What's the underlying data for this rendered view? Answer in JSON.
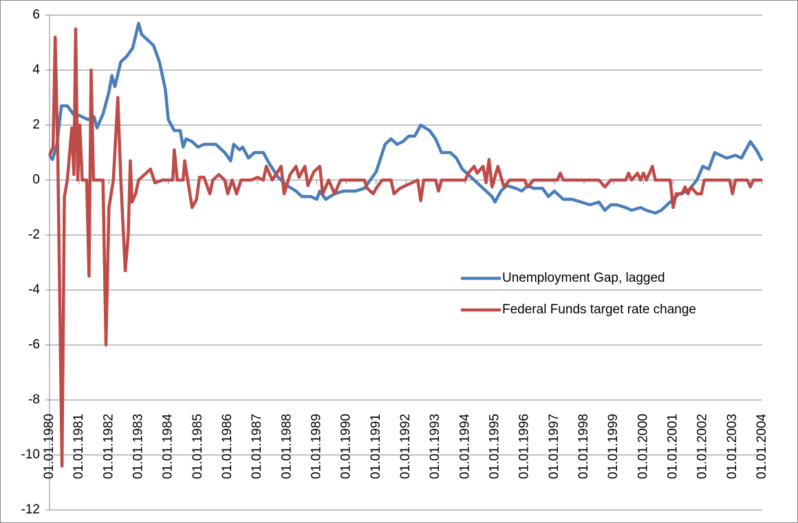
{
  "chart_data": {
    "type": "line",
    "xlim": [
      1980,
      2004
    ],
    "xticks": [
      {
        "value": 1980,
        "label": "01.01.1980"
      },
      {
        "value": 1981,
        "label": "01.01.1981"
      },
      {
        "value": 1982,
        "label": "01.01.1982"
      },
      {
        "value": 1983,
        "label": "01.01.1983"
      },
      {
        "value": 1984,
        "label": "01.01.1984"
      },
      {
        "value": 1985,
        "label": "01.01.1985"
      },
      {
        "value": 1986,
        "label": "01.01.1986"
      },
      {
        "value": 1987,
        "label": "01.01.1987"
      },
      {
        "value": 1988,
        "label": "01.01.1988"
      },
      {
        "value": 1989,
        "label": "01.01.1989"
      },
      {
        "value": 1990,
        "label": "01.01.1990"
      },
      {
        "value": 1991,
        "label": "01.01.1991"
      },
      {
        "value": 1992,
        "label": "01.01.1992"
      },
      {
        "value": 1993,
        "label": "01.01.1993"
      },
      {
        "value": 1994,
        "label": "01.01.1994"
      },
      {
        "value": 1995,
        "label": "01.01.1995"
      },
      {
        "value": 1996,
        "label": "01.01.1996"
      },
      {
        "value": 1997,
        "label": "01.01.1997"
      },
      {
        "value": 1998,
        "label": "01.01.1998"
      },
      {
        "value": 1999,
        "label": "01.01.1999"
      },
      {
        "value": 2000,
        "label": "01.01.2000"
      },
      {
        "value": 2001,
        "label": "01.01.2001"
      },
      {
        "value": 2002,
        "label": "01.01.2002"
      },
      {
        "value": 2003,
        "label": "01.01.2003"
      },
      {
        "value": 2004,
        "label": "01.01.2004"
      }
    ],
    "ylim": [
      -12,
      6
    ],
    "yticks": [
      -12,
      -10,
      -8,
      -6,
      -4,
      -2,
      0,
      2,
      4,
      6
    ],
    "grid": true,
    "legend": "right",
    "series": [
      {
        "name": "Unemployment Gap, lagged",
        "color": "#4a7ebb",
        "x": [
          1980.0,
          1980.1,
          1980.25,
          1980.4,
          1980.6,
          1980.8,
          1981.0,
          1981.3,
          1981.5,
          1981.6,
          1981.8,
          1982.0,
          1982.1,
          1982.2,
          1982.4,
          1982.6,
          1982.8,
          1983.0,
          1983.1,
          1983.5,
          1983.7,
          1983.9,
          1984.0,
          1984.2,
          1984.4,
          1984.5,
          1984.6,
          1984.8,
          1985.0,
          1985.2,
          1985.6,
          1985.9,
          1986.1,
          1986.2,
          1986.4,
          1986.5,
          1986.7,
          1986.9,
          1987.2,
          1987.4,
          1987.7,
          1988.0,
          1988.3,
          1988.5,
          1988.8,
          1989.0,
          1989.1,
          1989.3,
          1989.6,
          1989.9,
          1990.3,
          1990.6,
          1990.8,
          1991.0,
          1991.3,
          1991.5,
          1991.7,
          1991.9,
          1992.1,
          1992.3,
          1992.5,
          1992.8,
          1993.0,
          1993.2,
          1993.5,
          1993.7,
          1993.9,
          1994.1,
          1994.3,
          1994.6,
          1994.9,
          1995.0,
          1995.2,
          1995.4,
          1995.7,
          1995.9,
          1996.1,
          1996.3,
          1996.6,
          1996.8,
          1997.0,
          1997.3,
          1997.6,
          1997.9,
          1998.2,
          1998.5,
          1998.7,
          1998.9,
          1999.1,
          1999.4,
          1999.6,
          1999.9,
          2000.1,
          2000.4,
          2000.6,
          2000.8,
          2001.0,
          2001.2,
          2001.5,
          2001.8,
          2002.0,
          2002.2,
          2002.4,
          2002.6,
          2002.8,
          2003.1,
          2003.3,
          2003.5,
          2003.6,
          2003.8,
          2004.0
        ],
        "values": [
          0.9,
          0.75,
          1.3,
          2.7,
          2.7,
          2.4,
          2.35,
          2.2,
          2.3,
          1.9,
          2.4,
          3.2,
          3.8,
          3.4,
          4.3,
          4.5,
          4.8,
          5.7,
          5.3,
          4.9,
          4.3,
          3.3,
          2.2,
          1.8,
          1.8,
          1.2,
          1.5,
          1.4,
          1.2,
          1.3,
          1.3,
          1.0,
          0.7,
          1.3,
          1.1,
          1.2,
          0.8,
          1.0,
          1.0,
          0.6,
          0.1,
          -0.2,
          -0.4,
          -0.6,
          -0.6,
          -0.7,
          -0.4,
          -0.7,
          -0.5,
          -0.4,
          -0.4,
          -0.3,
          0.0,
          0.3,
          1.3,
          1.5,
          1.3,
          1.4,
          1.6,
          1.6,
          2.0,
          1.8,
          1.5,
          1.0,
          1.0,
          0.8,
          0.4,
          0.2,
          0.0,
          -0.3,
          -0.6,
          -0.8,
          -0.4,
          -0.2,
          -0.3,
          -0.4,
          -0.2,
          -0.3,
          -0.3,
          -0.6,
          -0.4,
          -0.7,
          -0.7,
          -0.8,
          -0.9,
          -0.8,
          -1.1,
          -0.9,
          -0.9,
          -1.0,
          -1.1,
          -1.0,
          -1.1,
          -1.2,
          -1.1,
          -0.9,
          -0.7,
          -0.5,
          -0.4,
          0.0,
          0.5,
          0.4,
          1.0,
          0.9,
          0.8,
          0.9,
          0.8,
          1.2,
          1.4,
          1.1,
          0.7
        ]
      },
      {
        "name": "Federal Funds target rate change",
        "color": "#be4b48",
        "x": [
          1980.0,
          1980.12,
          1980.19,
          1980.28,
          1980.42,
          1980.5,
          1980.6,
          1980.75,
          1980.82,
          1980.88,
          1980.95,
          1981.02,
          1981.1,
          1981.25,
          1981.33,
          1981.4,
          1981.48,
          1981.8,
          1981.9,
          1982.0,
          1982.15,
          1982.3,
          1982.4,
          1982.55,
          1982.65,
          1982.72,
          1982.78,
          1982.9,
          1983.0,
          1983.2,
          1983.4,
          1983.55,
          1983.8,
          1984.15,
          1984.2,
          1984.3,
          1984.5,
          1984.55,
          1984.8,
          1984.95,
          1985.05,
          1985.2,
          1985.4,
          1985.5,
          1985.7,
          1985.9,
          1986.0,
          1986.15,
          1986.3,
          1986.45,
          1986.8,
          1987.0,
          1987.2,
          1987.3,
          1987.5,
          1987.8,
          1987.9,
          1988.1,
          1988.3,
          1988.4,
          1988.6,
          1988.7,
          1988.9,
          1989.1,
          1989.2,
          1989.4,
          1989.6,
          1989.8,
          1990.6,
          1990.7,
          1990.9,
          1991.0,
          1991.2,
          1991.5,
          1991.6,
          1991.8,
          1992.4,
          1992.5,
          1992.6,
          1993.0,
          1993.1,
          1993.2,
          1994.0,
          1994.1,
          1994.3,
          1994.4,
          1994.6,
          1994.7,
          1994.8,
          1994.9,
          1995.1,
          1995.3,
          1995.5,
          1996.0,
          1996.1,
          1996.3,
          1997.1,
          1997.2,
          1997.3,
          1998.5,
          1998.7,
          1998.9,
          1999.4,
          1999.5,
          1999.6,
          1999.8,
          1999.9,
          2000.0,
          2000.1,
          2000.3,
          2000.4,
          2000.9,
          2001.0,
          2001.1,
          2001.2,
          2001.3,
          2001.4,
          2001.5,
          2001.6,
          2001.8,
          2001.95,
          2002.05,
          2002.9,
          2003.0,
          2003.1,
          2003.5,
          2003.6,
          2003.7,
          2004.0
        ],
        "values": [
          0.9,
          1.2,
          5.2,
          0.8,
          -10.4,
          -0.6,
          0.0,
          1.9,
          0.2,
          5.5,
          0.0,
          2.0,
          0.0,
          0.0,
          -3.5,
          4.0,
          0.0,
          0.0,
          -6.0,
          -1.0,
          0.0,
          3.0,
          0.0,
          -3.3,
          -2.0,
          0.7,
          -0.8,
          -0.5,
          0.0,
          0.2,
          0.4,
          -0.1,
          0.0,
          0.0,
          1.1,
          0.0,
          0.0,
          0.7,
          -1.0,
          -0.7,
          0.1,
          0.1,
          -0.5,
          0.0,
          0.2,
          0.0,
          -0.5,
          0.0,
          -0.5,
          0.0,
          0.0,
          0.1,
          0.0,
          0.5,
          0.0,
          0.5,
          -0.5,
          0.2,
          0.5,
          0.1,
          0.5,
          -0.2,
          0.3,
          0.5,
          -0.5,
          0.0,
          -0.5,
          0.0,
          0.0,
          -0.3,
          -0.5,
          -0.3,
          0.0,
          0.0,
          -0.5,
          -0.3,
          0.0,
          -0.75,
          0.0,
          0.0,
          -0.4,
          0.0,
          0.0,
          0.25,
          0.5,
          0.25,
          0.5,
          -0.1,
          0.75,
          -0.25,
          0.5,
          -0.25,
          0.0,
          0.0,
          -0.25,
          0.0,
          0.0,
          0.25,
          0.0,
          0.0,
          -0.25,
          0.0,
          0.0,
          0.25,
          0.0,
          0.25,
          0.0,
          0.25,
          0.0,
          0.5,
          0.0,
          0.0,
          -1.0,
          -0.5,
          -0.5,
          -0.5,
          -0.25,
          -0.5,
          -0.25,
          -0.5,
          -0.5,
          0.0,
          0.0,
          -0.5,
          0.0,
          0.0,
          -0.25,
          0.0,
          0.0
        ]
      }
    ]
  }
}
